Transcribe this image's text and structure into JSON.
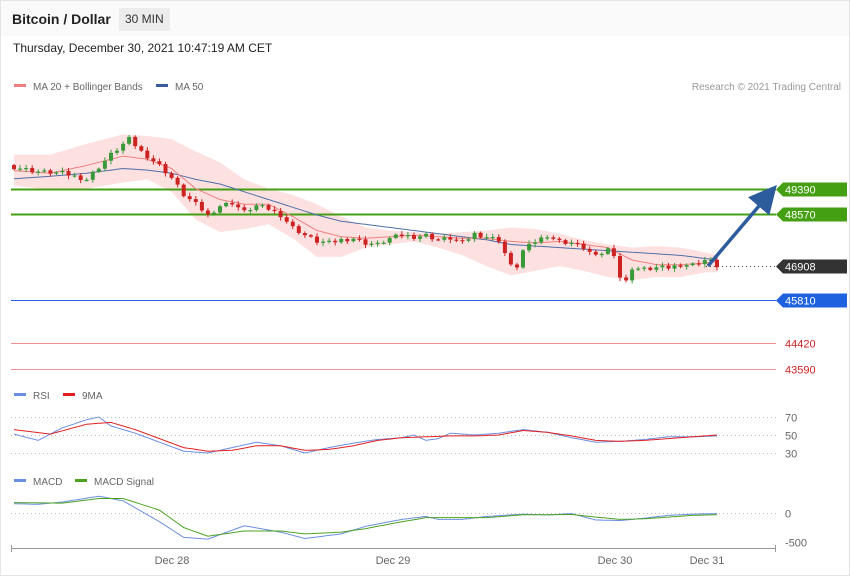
{
  "header": {
    "symbol": "Bitcoin / Dollar",
    "timeframe": "30 MIN"
  },
  "datetime": "Thursday, December 30, 2021 10:47:19 AM CET",
  "source_note": "Research © 2021 Trading Central",
  "colors": {
    "up": "#3a9a3a",
    "down": "#cc2222",
    "ma20": "#f08080",
    "ma50": "#4f6fa8",
    "bands": "#fde1e1",
    "resistance": "#44a012",
    "support": "#1f62e0",
    "support_red": "#f09090",
    "price": "#333333",
    "arrow": "#2d5c9c",
    "rsi": "#6b8ee0",
    "rsi_ma": "#e32020",
    "macd": "#6b8ee0",
    "macd_signal": "#4ea222"
  },
  "legends": {
    "price": [
      {
        "label": "MA 20 + Bollinger Bands",
        "color": "#f08080"
      },
      {
        "label": "MA 50",
        "color": "#3b5c9a"
      }
    ],
    "rsi": [
      {
        "label": "RSI",
        "color": "#6b8ee0"
      },
      {
        "label": "9MA",
        "color": "#e32020"
      }
    ],
    "macd": [
      {
        "label": "MACD",
        "color": "#6b8ee0"
      },
      {
        "label": "MACD Signal",
        "color": "#4ea222"
      }
    ]
  },
  "chart_data": [
    {
      "type": "candlestick",
      "title": "Bitcoin / Dollar",
      "timeframe": "30 MIN",
      "x_labels": [
        "Dec 28",
        "Dec 29",
        "Dec 30",
        "Dec 31"
      ],
      "key_levels": [
        {
          "value": 49390,
          "label": "49390",
          "kind": "resistance"
        },
        {
          "value": 48570,
          "label": "48570",
          "kind": "resistance"
        },
        {
          "value": 46908,
          "label": "46908",
          "kind": "last-price"
        },
        {
          "value": 45810,
          "label": "45810",
          "kind": "support"
        },
        {
          "value": 44420,
          "label": "44420",
          "kind": "support"
        },
        {
          "value": 43590,
          "label": "43590",
          "kind": "support"
        }
      ],
      "projection": {
        "from": 46908,
        "to": 49390
      },
      "close_path": [
        [
          0,
          50100
        ],
        [
          4,
          49950
        ],
        [
          8,
          49900
        ],
        [
          12,
          49700
        ],
        [
          16,
          50500
        ],
        [
          19,
          51000
        ],
        [
          21,
          50600
        ],
        [
          24,
          50150
        ],
        [
          26,
          49750
        ],
        [
          28,
          49200
        ],
        [
          30,
          48900
        ],
        [
          32,
          48550
        ],
        [
          34,
          48850
        ],
        [
          36,
          48950
        ],
        [
          38,
          48650
        ],
        [
          40,
          48850
        ],
        [
          42,
          48750
        ],
        [
          44,
          48550
        ],
        [
          46,
          48150
        ],
        [
          48,
          47900
        ],
        [
          50,
          47700
        ],
        [
          52,
          47650
        ],
        [
          54,
          47750
        ],
        [
          56,
          47800
        ],
        [
          58,
          47650
        ],
        [
          60,
          47600
        ],
        [
          62,
          47800
        ],
        [
          64,
          47900
        ],
        [
          66,
          47850
        ],
        [
          68,
          47900
        ],
        [
          70,
          47750
        ],
        [
          72,
          47800
        ],
        [
          74,
          47650
        ],
        [
          76,
          47950
        ],
        [
          78,
          47850
        ],
        [
          80,
          47750
        ],
        [
          82,
          46900
        ],
        [
          83,
          46900
        ],
        [
          84,
          47400
        ],
        [
          86,
          47700
        ],
        [
          88,
          47900
        ],
        [
          90,
          47700
        ],
        [
          92,
          47650
        ],
        [
          94,
          47500
        ],
        [
          96,
          47200
        ],
        [
          98,
          47450
        ],
        [
          99,
          47300
        ],
        [
          100,
          46550
        ],
        [
          101,
          46400
        ],
        [
          102,
          46850
        ],
        [
          104,
          46800
        ],
        [
          106,
          46850
        ],
        [
          108,
          46850
        ],
        [
          110,
          46950
        ],
        [
          112,
          46950
        ],
        [
          114,
          47100
        ],
        [
          115,
          47050
        ],
        [
          116,
          46908
        ]
      ],
      "ma20_path": [
        [
          0,
          49980
        ],
        [
          6,
          49900
        ],
        [
          12,
          50150
        ],
        [
          18,
          50450
        ],
        [
          22,
          50350
        ],
        [
          26,
          50050
        ],
        [
          30,
          49400
        ],
        [
          34,
          49050
        ],
        [
          38,
          48900
        ],
        [
          42,
          48900
        ],
        [
          46,
          48500
        ],
        [
          50,
          48050
        ],
        [
          54,
          47850
        ],
        [
          58,
          47800
        ],
        [
          62,
          47850
        ],
        [
          66,
          47900
        ],
        [
          70,
          47850
        ],
        [
          74,
          47800
        ],
        [
          78,
          47800
        ],
        [
          82,
          47700
        ],
        [
          86,
          47650
        ],
        [
          90,
          47700
        ],
        [
          94,
          47600
        ],
        [
          98,
          47500
        ],
        [
          102,
          47100
        ],
        [
          106,
          46950
        ],
        [
          110,
          46950
        ],
        [
          114,
          47000
        ],
        [
          116,
          47050
        ]
      ],
      "ma50_path": [
        [
          0,
          49720
        ],
        [
          6,
          49800
        ],
        [
          12,
          49900
        ],
        [
          18,
          50050
        ],
        [
          22,
          50000
        ],
        [
          26,
          49900
        ],
        [
          30,
          49700
        ],
        [
          34,
          49550
        ],
        [
          38,
          49300
        ],
        [
          42,
          49050
        ],
        [
          46,
          48800
        ],
        [
          50,
          48550
        ],
        [
          54,
          48350
        ],
        [
          58,
          48250
        ],
        [
          62,
          48150
        ],
        [
          66,
          48050
        ],
        [
          70,
          47950
        ],
        [
          74,
          47850
        ],
        [
          78,
          47750
        ],
        [
          82,
          47600
        ],
        [
          86,
          47550
        ],
        [
          90,
          47500
        ],
        [
          94,
          47450
        ],
        [
          98,
          47400
        ],
        [
          102,
          47350
        ],
        [
          106,
          47300
        ],
        [
          110,
          47250
        ],
        [
          114,
          47150
        ],
        [
          116,
          47100
        ]
      ],
      "band_upper": [
        [
          0,
          50500
        ],
        [
          6,
          50500
        ],
        [
          12,
          50850
        ],
        [
          18,
          51150
        ],
        [
          22,
          51100
        ],
        [
          26,
          51000
        ],
        [
          30,
          50600
        ],
        [
          34,
          50250
        ],
        [
          38,
          49700
        ],
        [
          42,
          49400
        ],
        [
          46,
          49200
        ],
        [
          50,
          48900
        ],
        [
          54,
          48500
        ],
        [
          58,
          48150
        ],
        [
          62,
          48050
        ],
        [
          66,
          48000
        ],
        [
          70,
          47950
        ],
        [
          74,
          48000
        ],
        [
          78,
          48050
        ],
        [
          82,
          48150
        ],
        [
          86,
          48100
        ],
        [
          90,
          47950
        ],
        [
          94,
          47750
        ],
        [
          98,
          47600
        ],
        [
          102,
          47500
        ],
        [
          106,
          47550
        ],
        [
          110,
          47500
        ],
        [
          114,
          47350
        ],
        [
          116,
          47250
        ]
      ],
      "band_lower": [
        [
          0,
          49500
        ],
        [
          6,
          49350
        ],
        [
          12,
          49400
        ],
        [
          18,
          49600
        ],
        [
          22,
          49700
        ],
        [
          26,
          49300
        ],
        [
          30,
          48400
        ],
        [
          34,
          48000
        ],
        [
          38,
          48100
        ],
        [
          42,
          48250
        ],
        [
          46,
          47800
        ],
        [
          50,
          47200
        ],
        [
          54,
          47200
        ],
        [
          58,
          47500
        ],
        [
          62,
          47600
        ],
        [
          66,
          47700
        ],
        [
          70,
          47500
        ],
        [
          74,
          47250
        ],
        [
          78,
          46900
        ],
        [
          82,
          46600
        ],
        [
          86,
          46750
        ],
        [
          90,
          46900
        ],
        [
          94,
          46750
        ],
        [
          98,
          46550
        ],
        [
          102,
          46450
        ],
        [
          106,
          46550
        ],
        [
          110,
          46550
        ],
        [
          114,
          46700
        ],
        [
          116,
          46700
        ]
      ]
    },
    {
      "type": "line",
      "title": "RSI",
      "y_ticks": [
        70,
        50,
        30
      ],
      "series": [
        {
          "name": "RSI",
          "values": [
            [
              0,
              51
            ],
            [
              4,
              44
            ],
            [
              8,
              58
            ],
            [
              12,
              67
            ],
            [
              14,
              70
            ],
            [
              16,
              60
            ],
            [
              20,
              52
            ],
            [
              24,
              42
            ],
            [
              28,
              32
            ],
            [
              32,
              30
            ],
            [
              36,
              36
            ],
            [
              40,
              42
            ],
            [
              44,
              38
            ],
            [
              48,
              30
            ],
            [
              52,
              36
            ],
            [
              56,
              41
            ],
            [
              60,
              45
            ],
            [
              64,
              47
            ],
            [
              66,
              50
            ],
            [
              68,
              44
            ],
            [
              70,
              46
            ],
            [
              72,
              52
            ],
            [
              76,
              50
            ],
            [
              80,
              52
            ],
            [
              84,
              56
            ],
            [
              88,
              53
            ],
            [
              92,
              47
            ],
            [
              96,
              42
            ],
            [
              100,
              43
            ],
            [
              104,
              45
            ],
            [
              108,
              48
            ],
            [
              112,
              48
            ],
            [
              116,
              49
            ]
          ]
        },
        {
          "name": "9MA",
          "values": [
            [
              0,
              56
            ],
            [
              6,
              51
            ],
            [
              12,
              62
            ],
            [
              16,
              64
            ],
            [
              20,
              56
            ],
            [
              24,
              46
            ],
            [
              28,
              36
            ],
            [
              32,
              32
            ],
            [
              36,
              33
            ],
            [
              40,
              38
            ],
            [
              44,
              38
            ],
            [
              48,
              33
            ],
            [
              52,
              34
            ],
            [
              56,
              38
            ],
            [
              60,
              44
            ],
            [
              64,
              47
            ],
            [
              68,
              48
            ],
            [
              72,
              49
            ],
            [
              76,
              49
            ],
            [
              80,
              50
            ],
            [
              84,
              55
            ],
            [
              88,
              53
            ],
            [
              92,
              49
            ],
            [
              96,
              44
            ],
            [
              100,
              43
            ],
            [
              104,
              44
            ],
            [
              108,
              46
            ],
            [
              112,
              48
            ],
            [
              116,
              50
            ]
          ]
        }
      ]
    },
    {
      "type": "line",
      "title": "MACD",
      "y_ticks": [
        0,
        -500
      ],
      "series": [
        {
          "name": "MACD",
          "values": [
            [
              0,
              160
            ],
            [
              4,
              150
            ],
            [
              8,
              190
            ],
            [
              14,
              290
            ],
            [
              18,
              210
            ],
            [
              24,
              -150
            ],
            [
              28,
              -420
            ],
            [
              32,
              -450
            ],
            [
              38,
              -220
            ],
            [
              44,
              -330
            ],
            [
              48,
              -440
            ],
            [
              54,
              -360
            ],
            [
              58,
              -230
            ],
            [
              64,
              -110
            ],
            [
              68,
              -60
            ],
            [
              70,
              -110
            ],
            [
              74,
              -110
            ],
            [
              78,
              -60
            ],
            [
              84,
              -20
            ],
            [
              88,
              -35
            ],
            [
              92,
              -10
            ],
            [
              96,
              -120
            ],
            [
              100,
              -130
            ],
            [
              104,
              -90
            ],
            [
              108,
              -40
            ],
            [
              112,
              -20
            ],
            [
              116,
              -10
            ]
          ]
        },
        {
          "name": "MACD Signal",
          "values": [
            [
              0,
              180
            ],
            [
              8,
              170
            ],
            [
              14,
              250
            ],
            [
              18,
              250
            ],
            [
              24,
              50
            ],
            [
              28,
              -250
            ],
            [
              32,
              -400
            ],
            [
              38,
              -310
            ],
            [
              44,
              -310
            ],
            [
              48,
              -360
            ],
            [
              54,
              -330
            ],
            [
              58,
              -270
            ],
            [
              64,
              -150
            ],
            [
              68,
              -80
            ],
            [
              72,
              -80
            ],
            [
              78,
              -80
            ],
            [
              84,
              -30
            ],
            [
              88,
              -30
            ],
            [
              92,
              -25
            ],
            [
              96,
              -70
            ],
            [
              100,
              -110
            ],
            [
              104,
              -100
            ],
            [
              108,
              -70
            ],
            [
              112,
              -40
            ],
            [
              116,
              -30
            ]
          ]
        }
      ]
    }
  ]
}
